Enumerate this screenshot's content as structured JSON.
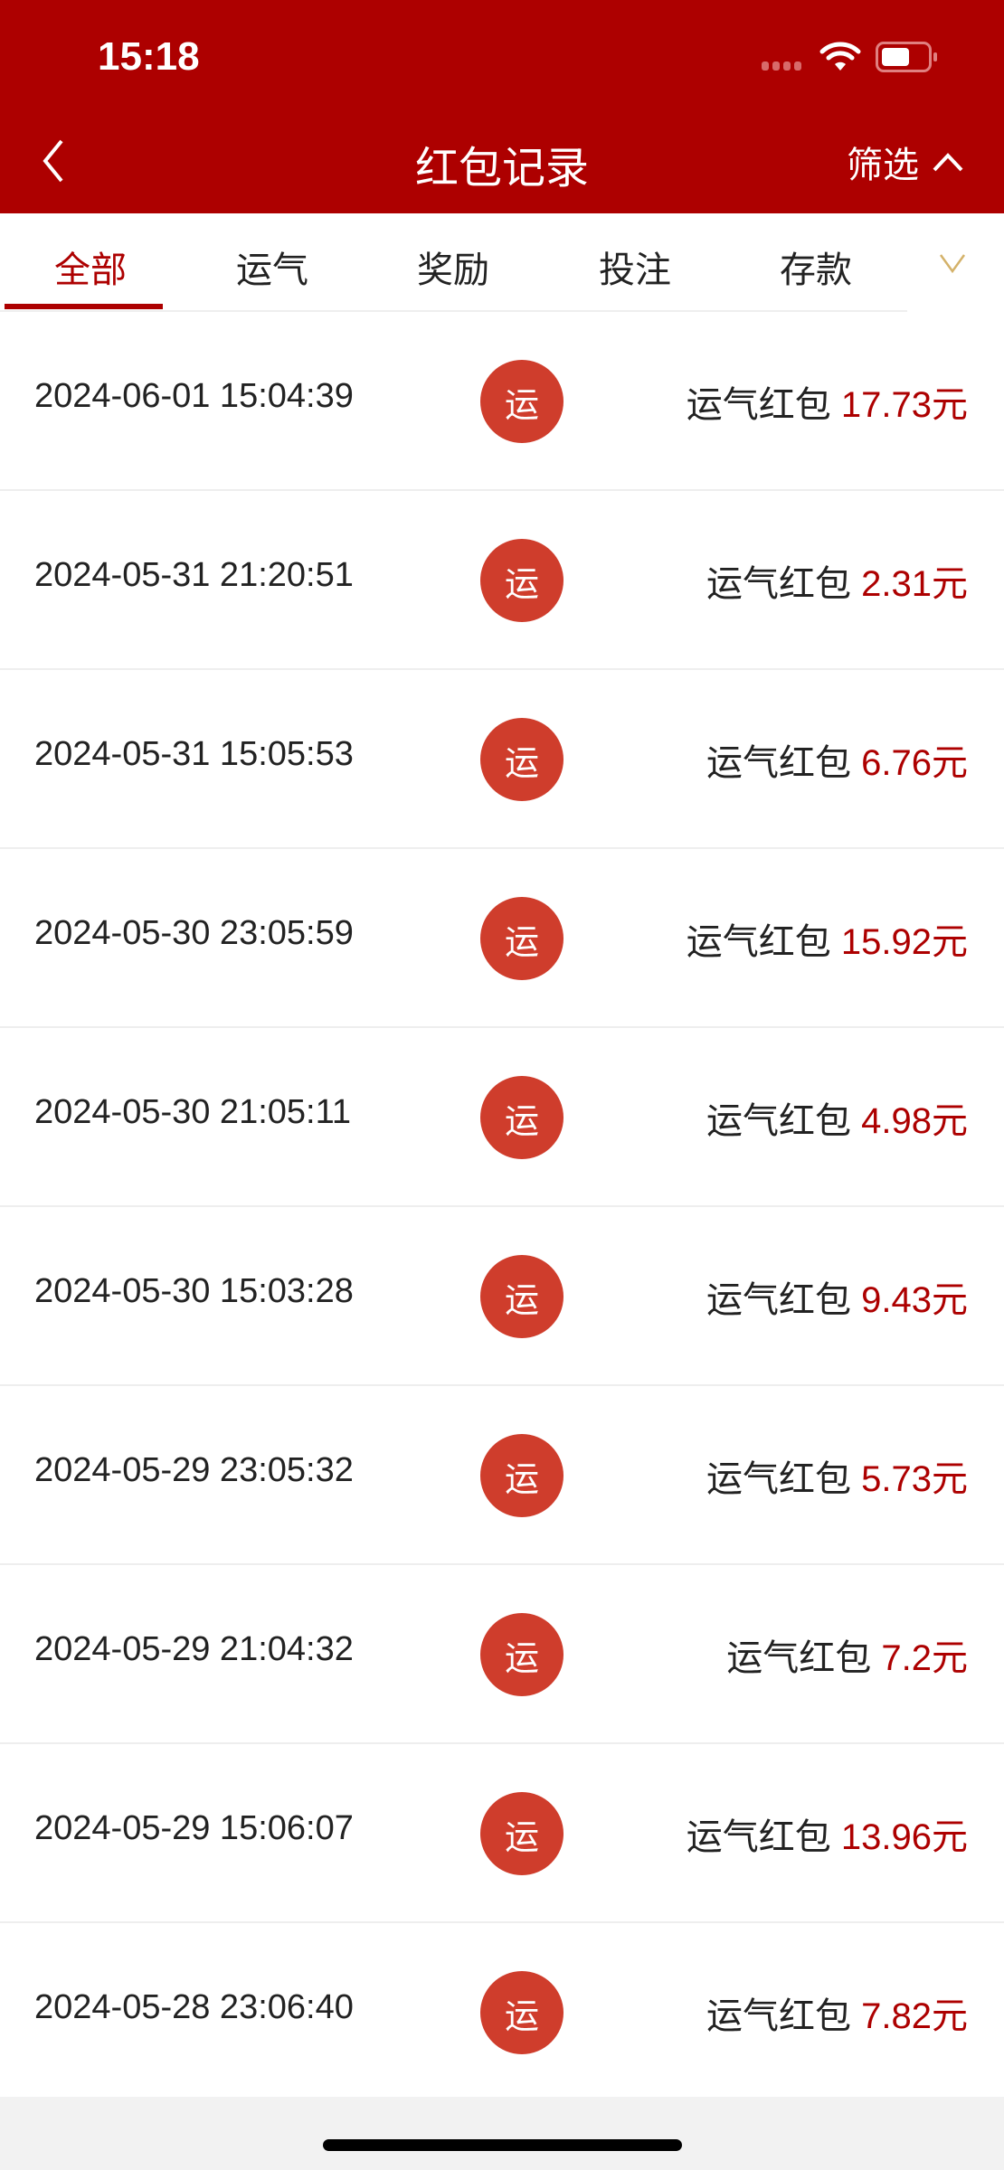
{
  "status_bar": {
    "time": "15:18"
  },
  "header": {
    "title": "红包记录",
    "filter_label": "筛选"
  },
  "tabs": [
    {
      "label": "全部",
      "active": true
    },
    {
      "label": "运气"
    },
    {
      "label": "奖励"
    },
    {
      "label": "投注"
    },
    {
      "label": "存款"
    }
  ],
  "colors": {
    "brand": "#ad0000",
    "badge": "#cf3d2c"
  },
  "records": [
    {
      "date": "2024-06-01 15:04:39",
      "badge": "运",
      "type": "运气红包",
      "amount": "17.73元"
    },
    {
      "date": "2024-05-31 21:20:51",
      "badge": "运",
      "type": "运气红包",
      "amount": "2.31元"
    },
    {
      "date": "2024-05-31 15:05:53",
      "badge": "运",
      "type": "运气红包",
      "amount": "6.76元"
    },
    {
      "date": "2024-05-30 23:05:59",
      "badge": "运",
      "type": "运气红包",
      "amount": "15.92元"
    },
    {
      "date": "2024-05-30 21:05:11",
      "badge": "运",
      "type": "运气红包",
      "amount": "4.98元"
    },
    {
      "date": "2024-05-30 15:03:28",
      "badge": "运",
      "type": "运气红包",
      "amount": "9.43元"
    },
    {
      "date": "2024-05-29 23:05:32",
      "badge": "运",
      "type": "运气红包",
      "amount": "5.73元"
    },
    {
      "date": "2024-05-29 21:04:32",
      "badge": "运",
      "type": "运气红包",
      "amount": "7.2元"
    },
    {
      "date": "2024-05-29 15:06:07",
      "badge": "运",
      "type": "运气红包",
      "amount": "13.96元"
    },
    {
      "date": "2024-05-28 23:06:40",
      "badge": "运",
      "type": "运气红包",
      "amount": "7.82元"
    }
  ]
}
